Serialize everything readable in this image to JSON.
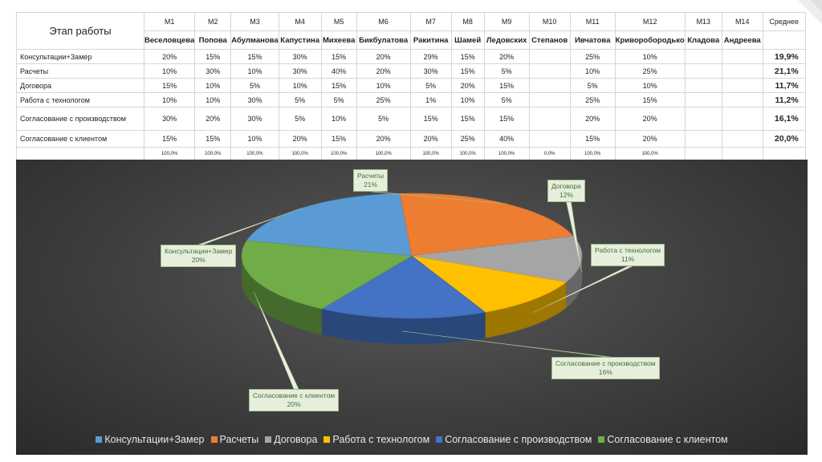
{
  "table": {
    "stage_header": "Этап работы",
    "avg_header": "Среднее",
    "codes": [
      "M1",
      "M2",
      "M3",
      "M4",
      "M5",
      "M6",
      "M7",
      "M8",
      "M9",
      "M10",
      "M11",
      "M12",
      "M13",
      "M14"
    ],
    "names": [
      "Веселовцева",
      "Попова",
      "Абулманова",
      "Капустина",
      "Михеева",
      "Бикбулатова",
      "Ракитина",
      "Шамей",
      "Ледовских",
      "Степанов",
      "Ивчатова",
      "Криворобородько",
      "Кладова",
      "Андреева"
    ],
    "rows": [
      {
        "stage": "Консультации+Замер",
        "cells": [
          "20%",
          "15%",
          "15%",
          "30%",
          "15%",
          "20%",
          "29%",
          "15%",
          "20%",
          "",
          "25%",
          "10%",
          "",
          ""
        ],
        "avg": "19,9%"
      },
      {
        "stage": "Расчеты",
        "cells": [
          "10%",
          "30%",
          "10%",
          "30%",
          "40%",
          "20%",
          "30%",
          "15%",
          "5%",
          "",
          "10%",
          "25%",
          "",
          ""
        ],
        "avg": "21,1%"
      },
      {
        "stage": "Договора",
        "cells": [
          "15%",
          "10%",
          "5%",
          "10%",
          "15%",
          "10%",
          "5%",
          "20%",
          "15%",
          "",
          "5%",
          "10%",
          "",
          ""
        ],
        "avg": "11,7%"
      },
      {
        "stage": "Работа с технологом",
        "cells": [
          "10%",
          "10%",
          "30%",
          "5%",
          "5%",
          "25%",
          "1%",
          "10%",
          "5%",
          "",
          "25%",
          "15%",
          "",
          ""
        ],
        "avg": "11,2%"
      },
      {
        "stage": "Согласование с производством",
        "cells": [
          "30%",
          "20%",
          "30%",
          "5%",
          "10%",
          "5%",
          "15%",
          "15%",
          "15%",
          "",
          "20%",
          "20%",
          "",
          ""
        ],
        "avg": "16,1%"
      },
      {
        "stage": "Согласование с клиентом",
        "cells": [
          "15%",
          "15%",
          "10%",
          "20%",
          "15%",
          "20%",
          "20%",
          "25%",
          "40%",
          "",
          "15%",
          "20%",
          "",
          ""
        ],
        "avg": "20,0%"
      }
    ],
    "totals": [
      "100,0%",
      "100,0%",
      "100,0%",
      "100,0%",
      "100,0%",
      "100,0%",
      "100,0%",
      "100,0%",
      "100,0%",
      "0,0%",
      "100,0%",
      "100,0%",
      "",
      ""
    ]
  },
  "chart_data": {
    "type": "pie",
    "categories": [
      "Консультации+Замер",
      "Расчеты",
      "Договора",
      "Работа с технологом",
      "Согласование с производством",
      "Согласование с клиентом"
    ],
    "values": [
      20,
      21,
      12,
      11,
      16,
      20
    ],
    "value_labels": [
      "20%",
      "21%",
      "12%",
      "11%",
      "16%",
      "20%"
    ],
    "colors": [
      "#5b9bd5",
      "#ed7d31",
      "#a5a5a5",
      "#ffc000",
      "#4472c4",
      "#70ad47"
    ],
    "legend_position": "bottom",
    "style": "3d"
  }
}
